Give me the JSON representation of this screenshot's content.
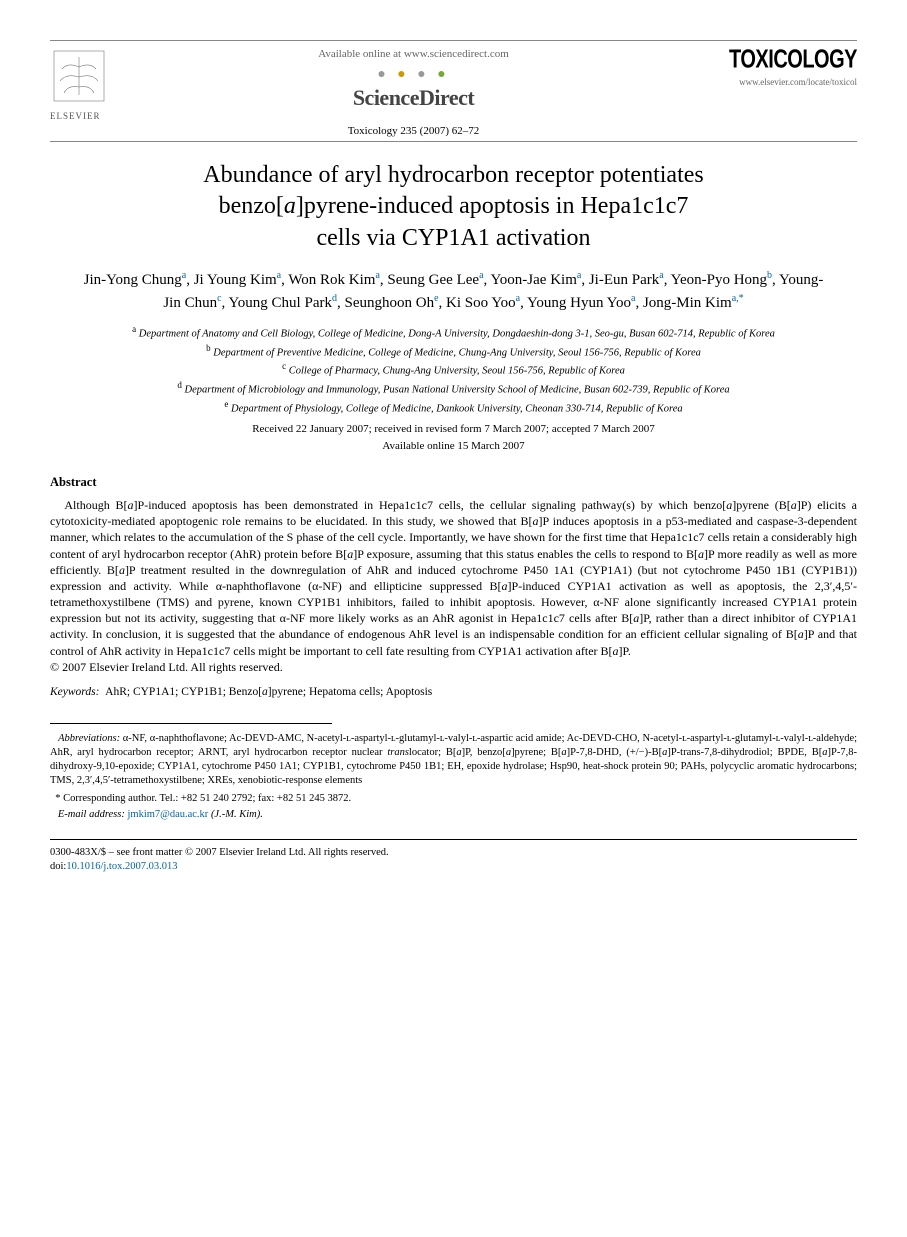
{
  "header": {
    "available_text": "Available online at www.sciencedirect.com",
    "sd_brand": "ScienceDirect",
    "journal_ref": "Toxicology 235 (2007) 62–72",
    "journal_logo": "TOXICOLOGY",
    "journal_url": "www.elsevier.com/locate/toxicol",
    "publisher": "ELSEVIER"
  },
  "title_lines": [
    "Abundance of aryl hydrocarbon receptor potentiates",
    "benzo[a]pyrene-induced apoptosis in Hepa1c1c7",
    "cells via CYP1A1 activation"
  ],
  "authors_html": "Jin-Yong Chung<sup>a</sup>, Ji Young Kim<sup>a</sup>, Won Rok Kim<sup>a</sup>, Seung Gee Lee<sup>a</sup>, Yoon-Jae Kim<sup>a</sup>, Ji-Eun Park<sup>a</sup>, Yeon-Pyo Hong<sup>b</sup>, Young-Jin Chun<sup>c</sup>, Young Chul Park<sup>d</sup>, Seunghoon Oh<sup>e</sup>, Ki Soo Yoo<sup>a</sup>, Young Hyun Yoo<sup>a</sup>, Jong-Min Kim<sup>a,*</sup>",
  "affiliations": [
    {
      "key": "a",
      "text": "Department of Anatomy and Cell Biology, College of Medicine, Dong-A University, Dongdaeshin-dong 3-1, Seo-gu, Busan 602-714, Republic of Korea"
    },
    {
      "key": "b",
      "text": "Department of Preventive Medicine, College of Medicine, Chung-Ang University, Seoul 156-756, Republic of Korea"
    },
    {
      "key": "c",
      "text": "College of Pharmacy, Chung-Ang University, Seoul 156-756, Republic of Korea"
    },
    {
      "key": "d",
      "text": "Department of Microbiology and Immunology, Pusan National University School of Medicine, Busan 602-739, Republic of Korea"
    },
    {
      "key": "e",
      "text": "Department of Physiology, College of Medicine, Dankook University, Cheonan 330-714, Republic of Korea"
    }
  ],
  "dates": "Received 22 January 2007; received in revised form 7 March 2007; accepted 7 March 2007",
  "available_online": "Available online 15 March 2007",
  "abstract_heading": "Abstract",
  "abstract_body": "Although B[a]P-induced apoptosis has been demonstrated in Hepa1c1c7 cells, the cellular signaling pathway(s) by which benzo[a]pyrene (B[a]P) elicits a cytotoxicity-mediated apoptogenic role remains to be elucidated. In this study, we showed that B[a]P induces apoptosis in a p53-mediated and caspase-3-dependent manner, which relates to the accumulation of the S phase of the cell cycle. Importantly, we have shown for the first time that Hepa1c1c7 cells retain a considerably high content of aryl hydrocarbon receptor (AhR) protein before B[a]P exposure, assuming that this status enables the cells to respond to B[a]P more readily as well as more efficiently. B[a]P treatment resulted in the downregulation of AhR and induced cytochrome P450 1A1 (CYP1A1) (but not cytochrome P450 1B1 (CYP1B1)) expression and activity. While α-naphthoflavone (α-NF) and ellipticine suppressed B[a]P-induced CYP1A1 activation as well as apoptosis, the 2,3′,4,5′-tetramethoxystilbene (TMS) and pyrene, known CYP1B1 inhibitors, failed to inhibit apoptosis. However, α-NF alone significantly increased CYP1A1 protein expression but not its activity, suggesting that α-NF more likely works as an AhR agonist in Hepa1c1c7 cells after B[a]P, rather than a direct inhibitor of CYP1A1 activity. In conclusion, it is suggested that the abundance of endogenous AhR level is an indispensable condition for an efficient cellular signaling of B[a]P and that control of AhR activity in Hepa1c1c7 cells might be important to cell fate resulting from CYP1A1 activation after B[a]P.",
  "copyright_line": "© 2007 Elsevier Ireland Ltd. All rights reserved.",
  "keywords_label": "Keywords:",
  "keywords": "AhR; CYP1A1; CYP1B1; Benzo[a]pyrene; Hepatoma cells; Apoptosis",
  "abbrev_label": "Abbreviations:",
  "abbrev_text": "α-NF, α-naphthoflavone; Ac-DEVD-AMC, N-acetyl-ʟ-aspartyl-ʟ-glutamyl-ʟ-valyl-ʟ-aspartic acid amide; Ac-DEVD-CHO, N-acetyl-ʟ-aspartyl-ʟ-glutamyl-ʟ-valyl-ʟ-aldehyde; AhR, aryl hydrocarbon receptor; ARNT, aryl hydrocarbon receptor nuclear translocator; B[a]P, benzo[a]pyrene; B[a]P-7,8-DHD, (+/−)-B[a]P-trans-7,8-dihydrodiol; BPDE, B[a]P-7,8-dihydroxy-9,10-epoxide; CYP1A1, cytochrome P450 1A1; CYP1B1, cytochrome P450 1B1; EH, epoxide hydrolase; Hsp90, heat-shock protein 90; PAHs, polycyclic aromatic hydrocarbons; TMS, 2,3′,4,5′-tetramethoxystilbene; XREs, xenobiotic-response elements",
  "corr_marker": "*",
  "corr_text": "Corresponding author. Tel.: +82 51 240 2792; fax: +82 51 245 3872.",
  "email_label": "E-mail address:",
  "email": "jmkim7@dau.ac.kr",
  "email_author": "(J.-M. Kim).",
  "footer_line1": "0300-483X/$ – see front matter © 2007 Elsevier Ireland Ltd. All rights reserved.",
  "footer_doi_prefix": "doi:",
  "footer_doi": "10.1016/j.tox.2007.03.013",
  "colors": {
    "link": "#0066aa",
    "text": "#000000",
    "muted": "#666666",
    "background": "#ffffff"
  }
}
